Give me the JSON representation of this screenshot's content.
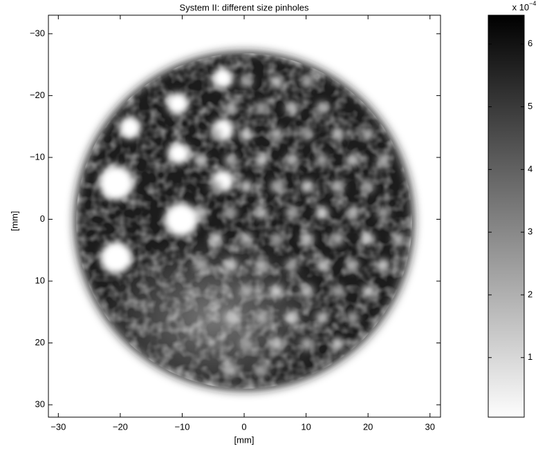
{
  "chart_data": {
    "type": "image",
    "title": "System II: different size pinholes",
    "xlabel": "[mm]",
    "ylabel": "[mm]",
    "xlim": [
      -31.6,
      31.7
    ],
    "ylim": [
      -33,
      32
    ],
    "y_reversed": true,
    "xticks": [
      {
        "value": -30,
        "label": "−30"
      },
      {
        "value": -20,
        "label": "−20"
      },
      {
        "value": -10,
        "label": "−10"
      },
      0,
      10,
      20,
      30
    ],
    "yticks": [
      {
        "value": -30,
        "label": "−30"
      },
      {
        "value": -20,
        "label": "−20"
      },
      {
        "value": -10,
        "label": "−10"
      },
      0,
      10,
      20,
      30
    ],
    "colormap": "gray_reversed",
    "colorbar": {
      "clim": [
        0.05,
        6.46
      ],
      "ticks": [
        1,
        2,
        3,
        4,
        5,
        6
      ],
      "scale_label": "x 10",
      "scale_exponent": "−4"
    }
  }
}
